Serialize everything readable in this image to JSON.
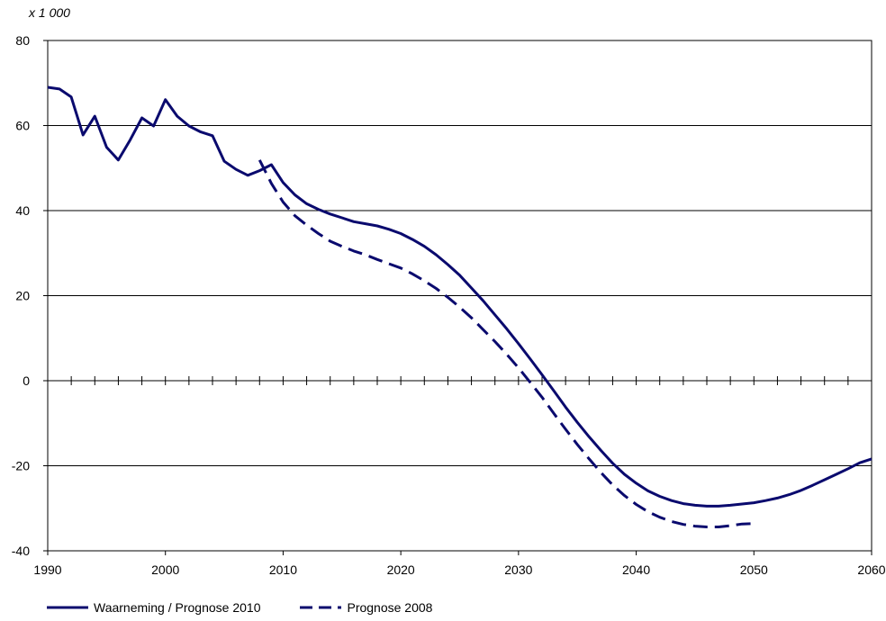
{
  "chart_data": {
    "type": "line",
    "unit_label": "x 1 000",
    "xlim": [
      1990,
      2060
    ],
    "ylim": [
      -40,
      80
    ],
    "x_ticks": [
      1990,
      2000,
      2010,
      2020,
      2030,
      2040,
      2050,
      2060
    ],
    "y_ticks": [
      -40,
      -20,
      0,
      20,
      40,
      60,
      80
    ],
    "grid": "horizontal",
    "legend_position": "bottom",
    "colors": {
      "line": "#0a0a6e",
      "grid": "#000000",
      "axis": "#000000"
    },
    "series": [
      {
        "name": "Waarneming / Prognose 2010",
        "style": "solid",
        "points": [
          [
            1990,
            69.0
          ],
          [
            1991,
            68.6
          ],
          [
            1992,
            66.7
          ],
          [
            1993,
            57.8
          ],
          [
            1994,
            62.2
          ],
          [
            1995,
            54.9
          ],
          [
            1996,
            51.9
          ],
          [
            1997,
            56.6
          ],
          [
            1998,
            61.8
          ],
          [
            1999,
            59.9
          ],
          [
            2000,
            66.1
          ],
          [
            2001,
            62.2
          ],
          [
            2002,
            59.9
          ],
          [
            2003,
            58.5
          ],
          [
            2004,
            57.6
          ],
          [
            2005,
            51.6
          ],
          [
            2006,
            49.7
          ],
          [
            2007,
            48.3
          ],
          [
            2008,
            49.4
          ],
          [
            2009,
            50.8
          ],
          [
            2010,
            46.6
          ],
          [
            2011,
            43.7
          ],
          [
            2012,
            41.6
          ],
          [
            2013,
            40.3
          ],
          [
            2014,
            39.2
          ],
          [
            2015,
            38.3
          ],
          [
            2016,
            37.4
          ],
          [
            2017,
            36.9
          ],
          [
            2018,
            36.4
          ],
          [
            2019,
            35.6
          ],
          [
            2020,
            34.6
          ],
          [
            2021,
            33.2
          ],
          [
            2022,
            31.6
          ],
          [
            2023,
            29.6
          ],
          [
            2024,
            27.3
          ],
          [
            2025,
            24.8
          ],
          [
            2026,
            21.8
          ],
          [
            2027,
            18.8
          ],
          [
            2028,
            15.5
          ],
          [
            2029,
            12.2
          ],
          [
            2030,
            8.7
          ],
          [
            2031,
            5.1
          ],
          [
            2032,
            1.4
          ],
          [
            2033,
            -2.4
          ],
          [
            2034,
            -6.2
          ],
          [
            2035,
            -9.8
          ],
          [
            2036,
            -13.2
          ],
          [
            2037,
            -16.4
          ],
          [
            2038,
            -19.4
          ],
          [
            2039,
            -22.0
          ],
          [
            2040,
            -24.1
          ],
          [
            2041,
            -25.9
          ],
          [
            2042,
            -27.2
          ],
          [
            2043,
            -28.2
          ],
          [
            2044,
            -28.9
          ],
          [
            2045,
            -29.3
          ],
          [
            2046,
            -29.5
          ],
          [
            2047,
            -29.5
          ],
          [
            2048,
            -29.3
          ],
          [
            2049,
            -29.0
          ],
          [
            2050,
            -28.7
          ],
          [
            2051,
            -28.2
          ],
          [
            2052,
            -27.6
          ],
          [
            2053,
            -26.8
          ],
          [
            2054,
            -25.8
          ],
          [
            2055,
            -24.6
          ],
          [
            2056,
            -23.3
          ],
          [
            2057,
            -22.0
          ],
          [
            2058,
            -20.7
          ],
          [
            2059,
            -19.3
          ],
          [
            2060,
            -18.4
          ]
        ]
      },
      {
        "name": "Prognose 2008",
        "style": "dashed",
        "points": [
          [
            2008,
            51.9
          ],
          [
            2009,
            46.4
          ],
          [
            2010,
            42.0
          ],
          [
            2011,
            38.8
          ],
          [
            2012,
            36.6
          ],
          [
            2013,
            34.6
          ],
          [
            2014,
            32.8
          ],
          [
            2015,
            31.6
          ],
          [
            2016,
            30.5
          ],
          [
            2017,
            29.6
          ],
          [
            2018,
            28.5
          ],
          [
            2019,
            27.5
          ],
          [
            2020,
            26.5
          ],
          [
            2021,
            25.1
          ],
          [
            2022,
            23.5
          ],
          [
            2023,
            21.7
          ],
          [
            2024,
            19.6
          ],
          [
            2025,
            17.3
          ],
          [
            2026,
            14.8
          ],
          [
            2027,
            12.0
          ],
          [
            2028,
            9.2
          ],
          [
            2029,
            6.2
          ],
          [
            2030,
            3.0
          ],
          [
            2031,
            -0.4
          ],
          [
            2032,
            -3.9
          ],
          [
            2033,
            -7.7
          ],
          [
            2034,
            -11.4
          ],
          [
            2035,
            -15.0
          ],
          [
            2036,
            -18.4
          ],
          [
            2037,
            -21.6
          ],
          [
            2038,
            -24.5
          ],
          [
            2039,
            -27.0
          ],
          [
            2040,
            -29.1
          ],
          [
            2041,
            -30.8
          ],
          [
            2042,
            -32.1
          ],
          [
            2043,
            -33.1
          ],
          [
            2044,
            -33.8
          ],
          [
            2045,
            -34.2
          ],
          [
            2046,
            -34.4
          ],
          [
            2047,
            -34.4
          ],
          [
            2048,
            -34.1
          ],
          [
            2049,
            -33.7
          ],
          [
            2050,
            -33.6
          ]
        ]
      }
    ]
  }
}
